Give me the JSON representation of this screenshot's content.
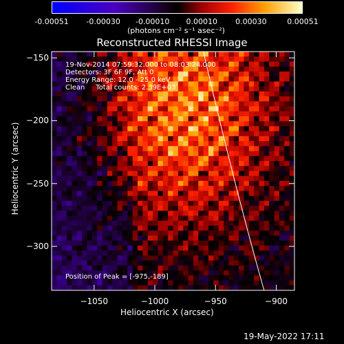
{
  "colorbar": {
    "tick_labels": [
      "-0.00051",
      "-0.00030",
      "-0.00010",
      "0.00010",
      "0.00030",
      "0.00051"
    ],
    "tick_values": [
      -0.00051,
      -0.0003,
      -0.0001,
      0.0001,
      0.0003,
      0.00051
    ],
    "range": [
      -0.00051,
      0.00051
    ],
    "units": "(photons cm⁻² s⁻¹ asec⁻²)",
    "colors": [
      "#0000ff",
      "#5a00b0",
      "#000000",
      "#c80000",
      "#ff8c00",
      "#ffffb0"
    ]
  },
  "annotations": {
    "line1": "19-Nov-2014 07:59:32.000 to 08:03:24.000",
    "line2": "Detectors: 3F 6F 9F, Att 0",
    "line3": "Energy Range: 12.0 - 25.0 keV",
    "line4": "Clean     Total counts: 2.39E+03",
    "peak": "Position of Peak = [-975,-189]"
  },
  "footer": {
    "date": "19-May-2022 17:11"
  },
  "chart_data": {
    "type": "heatmap",
    "title": "Reconstructed RHESSI Image",
    "xlabel": "Heliocentric X (arcsec)",
    "ylabel": "Heliocentric Y (arcsec)",
    "xlim": [
      -1085,
      -885
    ],
    "ylim": [
      -335,
      -145
    ],
    "x_ticks": [
      -1050,
      -1000,
      -950,
      -900
    ],
    "x_tick_labels": [
      "−1050",
      "−1000",
      "−950",
      "−900"
    ],
    "y_ticks": [
      -150,
      -200,
      -250,
      -300
    ],
    "y_tick_labels": [
      "−150",
      "−200",
      "−250",
      "−300"
    ],
    "peak_position": [
      -975,
      -189
    ],
    "limb": true,
    "grid": false,
    "legend": "colorbar-top"
  }
}
